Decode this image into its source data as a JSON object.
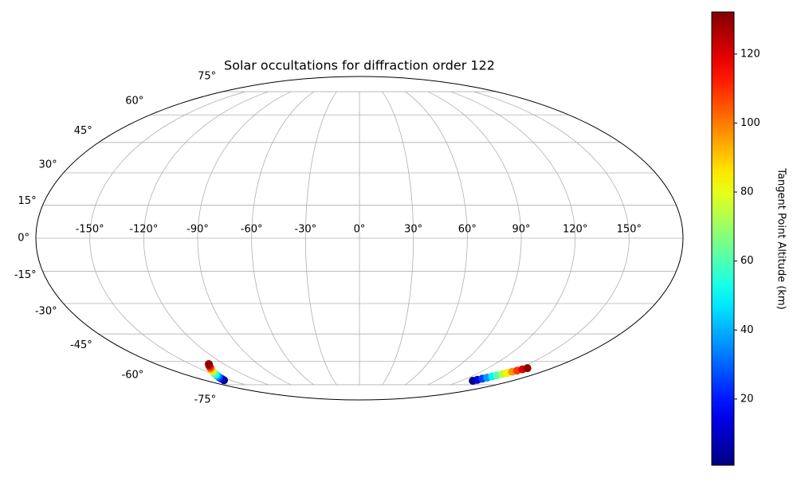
{
  "chart_data": {
    "type": "scatter",
    "projection": "mollweide",
    "title": "Solar occultations for diffraction order 122",
    "grid": true,
    "colormap": "jet",
    "xlim": [
      -180,
      180
    ],
    "ylim": [
      -90,
      90
    ],
    "xticks": [
      {
        "value": -150,
        "label": "-150°"
      },
      {
        "value": -120,
        "label": "-120°"
      },
      {
        "value": -90,
        "label": "-90°"
      },
      {
        "value": -60,
        "label": "-60°"
      },
      {
        "value": -30,
        "label": "-30°"
      },
      {
        "value": 0,
        "label": "0°"
      },
      {
        "value": 30,
        "label": "30°"
      },
      {
        "value": 60,
        "label": "60°"
      },
      {
        "value": 90,
        "label": "90°"
      },
      {
        "value": 120,
        "label": "120°"
      },
      {
        "value": 150,
        "label": "150°"
      }
    ],
    "yticks": [
      {
        "value": -75,
        "label": "-75°"
      },
      {
        "value": -60,
        "label": "-60°"
      },
      {
        "value": -45,
        "label": "-45°"
      },
      {
        "value": -30,
        "label": "-30°"
      },
      {
        "value": -15,
        "label": "-15°"
      },
      {
        "value": 0,
        "label": "0°"
      },
      {
        "value": 15,
        "label": "15°"
      },
      {
        "value": 30,
        "label": "30°"
      },
      {
        "value": 45,
        "label": "45°"
      },
      {
        "value": 60,
        "label": "60°"
      },
      {
        "value": 75,
        "label": "75°"
      }
    ],
    "series": [
      {
        "x": [
          -157.6,
          -155.4,
          -153.2,
          -151.0,
          -148.8,
          -146.6,
          -144.4,
          -142.2,
          -140.0,
          -137.8,
          -135.6,
          -133.4
        ],
        "values": [
          -71.8,
          -70.9,
          -69.9,
          -69.0,
          -68.1,
          -67.1,
          -66.2,
          -65.2,
          -64.3,
          -63.4,
          -62.4,
          -61.5
        ],
        "color_values": [
          1,
          13,
          25,
          37,
          49,
          61,
          73,
          85,
          97,
          109,
          121,
          130
        ]
      },
      {
        "x": [
          133.7,
          135.8,
          137.9,
          140.1,
          142.2,
          144.3,
          146.4,
          148.5,
          150.6,
          152.8,
          154.9,
          157.0
        ],
        "values": [
          -72.2,
          -71.5,
          -70.7,
          -70.0,
          -69.2,
          -68.5,
          -67.7,
          -67.0,
          -66.2,
          -65.5,
          -64.7,
          -64.0
        ],
        "color_values": [
          1,
          13,
          25,
          37,
          49,
          61,
          73,
          85,
          97,
          109,
          121,
          130
        ]
      }
    ],
    "colorbar": {
      "label": "Tangent Point Altitude (km)",
      "lim": [
        0.8,
        132.2
      ],
      "ticks": [
        20,
        40,
        60,
        80,
        100,
        120
      ]
    }
  }
}
